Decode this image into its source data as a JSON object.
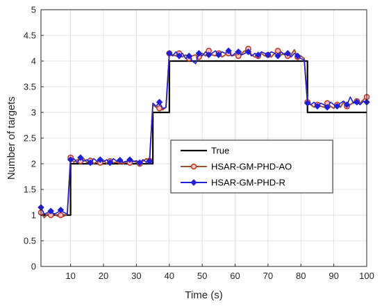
{
  "chart_data": {
    "type": "line",
    "title": "",
    "xlabel": "Time (s)",
    "ylabel": "Number of targets",
    "xlim": [
      1,
      100
    ],
    "ylim": [
      0,
      5
    ],
    "xticks": [
      10,
      20,
      30,
      40,
      50,
      60,
      70,
      80,
      90,
      100
    ],
    "yticks": [
      0,
      0.5,
      1,
      1.5,
      2,
      2.5,
      3,
      3.5,
      4,
      4.5,
      5
    ],
    "xtick_labels": [
      "10",
      "20",
      "30",
      "40",
      "50",
      "60",
      "70",
      "80",
      "90",
      "100"
    ],
    "ytick_labels": [
      "0",
      "0.5",
      "1",
      "1.5",
      "2",
      "2.5",
      "3",
      "3.5",
      "4",
      "4.5",
      "5"
    ],
    "grid": true,
    "legend_position": "center-right",
    "series": [
      {
        "name": "True",
        "color": "#000000",
        "marker": "none",
        "step": true,
        "x": [
          1,
          10,
          10,
          35,
          35,
          40,
          40,
          82,
          82,
          100
        ],
        "y": [
          1,
          1,
          2,
          2,
          3,
          3,
          4,
          4,
          3,
          3
        ]
      },
      {
        "name": "HSAR-GM-PHD-AO",
        "color": "#a0522d",
        "marker": "circle",
        "marker_every": 3,
        "x": [
          1,
          2,
          3,
          4,
          5,
          6,
          7,
          8,
          9,
          10,
          11,
          12,
          13,
          14,
          15,
          16,
          17,
          18,
          19,
          20,
          21,
          22,
          23,
          24,
          25,
          26,
          27,
          28,
          29,
          30,
          31,
          32,
          33,
          34,
          35,
          36,
          37,
          38,
          39,
          40,
          41,
          42,
          43,
          44,
          45,
          46,
          47,
          48,
          49,
          50,
          51,
          52,
          53,
          54,
          55,
          56,
          57,
          58,
          59,
          60,
          61,
          62,
          63,
          64,
          65,
          66,
          67,
          68,
          69,
          70,
          71,
          72,
          73,
          74,
          75,
          76,
          77,
          78,
          79,
          80,
          81,
          82,
          83,
          84,
          85,
          86,
          87,
          88,
          89,
          90,
          91,
          92,
          93,
          94,
          95,
          96,
          97,
          98,
          99,
          100
        ],
        "y": [
          1.05,
          0.95,
          1.02,
          1.0,
          1.03,
          0.98,
          1.0,
          0.98,
          1.02,
          2.12,
          2.03,
          2.08,
          2.05,
          2.1,
          2.02,
          2.06,
          2.0,
          2.04,
          2.02,
          2.07,
          2.0,
          2.05,
          2.02,
          2.03,
          2.05,
          2.0,
          2.04,
          2.02,
          2.06,
          2.03,
          2.0,
          2.05,
          2.1,
          2.06,
          3.15,
          3.1,
          3.08,
          3.05,
          3.1,
          4.15,
          4.12,
          4.1,
          4.15,
          4.08,
          4.12,
          4.05,
          4.1,
          4.12,
          4.08,
          4.15,
          4.1,
          4.2,
          4.12,
          4.1,
          4.15,
          4.08,
          4.12,
          4.15,
          4.1,
          4.12,
          4.1,
          4.15,
          4.2,
          4.24,
          4.12,
          4.08,
          4.1,
          4.15,
          4.1,
          4.12,
          4.08,
          4.15,
          4.2,
          4.12,
          4.15,
          4.1,
          4.12,
          4.22,
          4.08,
          4.1,
          4.05,
          3.2,
          3.15,
          3.1,
          3.15,
          3.12,
          3.1,
          3.18,
          3.12,
          3.08,
          3.15,
          3.1,
          3.2,
          3.12,
          3.15,
          3.2,
          3.22,
          3.18,
          3.25,
          3.3
        ]
      },
      {
        "name": "HSAR-GM-PHD-R",
        "color": "#1f1fd6",
        "marker": "diamond",
        "marker_every": 3,
        "x": [
          1,
          2,
          3,
          4,
          5,
          6,
          7,
          8,
          9,
          10,
          11,
          12,
          13,
          14,
          15,
          16,
          17,
          18,
          19,
          20,
          21,
          22,
          23,
          24,
          25,
          26,
          27,
          28,
          29,
          30,
          31,
          32,
          33,
          34,
          35,
          36,
          37,
          38,
          39,
          40,
          41,
          42,
          43,
          44,
          45,
          46,
          47,
          48,
          49,
          50,
          51,
          52,
          53,
          54,
          55,
          56,
          57,
          58,
          59,
          60,
          61,
          62,
          63,
          64,
          65,
          66,
          67,
          68,
          69,
          70,
          71,
          72,
          73,
          74,
          75,
          76,
          77,
          78,
          79,
          80,
          81,
          82,
          83,
          84,
          85,
          86,
          87,
          88,
          89,
          90,
          91,
          92,
          93,
          94,
          95,
          96,
          97,
          98,
          99,
          100
        ],
        "y": [
          1.15,
          1.02,
          1.05,
          1.08,
          1.02,
          1.05,
          1.1,
          1.05,
          1.02,
          2.08,
          2.1,
          2.02,
          2.12,
          2.05,
          2.08,
          2.02,
          2.1,
          2.05,
          2.08,
          2.04,
          2.08,
          2.02,
          2.1,
          2.05,
          2.07,
          2.03,
          2.05,
          2.08,
          2.04,
          2.06,
          2.02,
          2.08,
          2.03,
          2.05,
          3.18,
          3.12,
          3.2,
          3.08,
          3.1,
          4.15,
          4.1,
          4.18,
          4.1,
          4.15,
          4.05,
          4.1,
          4.0,
          3.95,
          4.15,
          4.1,
          4.18,
          4.12,
          4.15,
          4.2,
          4.12,
          4.18,
          4.15,
          4.2,
          4.1,
          4.15,
          4.18,
          4.12,
          4.15,
          4.18,
          4.1,
          4.15,
          4.12,
          4.18,
          4.15,
          4.12,
          4.18,
          4.15,
          4.1,
          4.18,
          4.12,
          4.15,
          4.08,
          4.15,
          4.1,
          4.05,
          4.02,
          3.18,
          3.15,
          3.2,
          3.12,
          3.18,
          3.15,
          3.1,
          3.2,
          3.15,
          3.12,
          3.18,
          3.22,
          3.15,
          3.3,
          3.18,
          3.2,
          3.15,
          3.22,
          3.2
        ]
      }
    ]
  }
}
